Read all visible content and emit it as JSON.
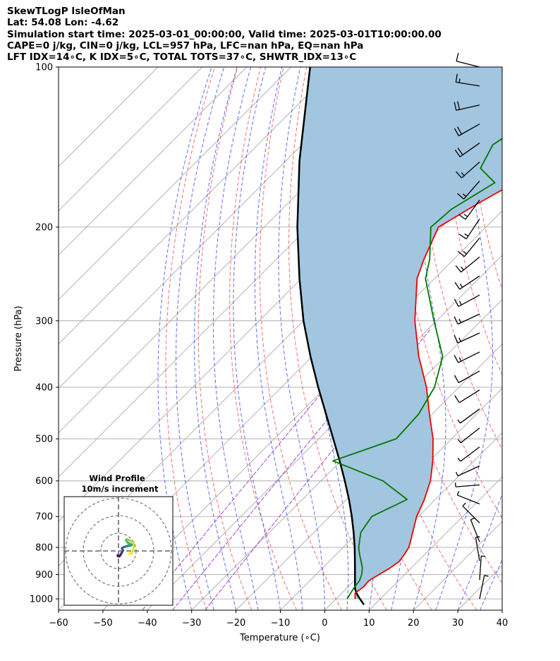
{
  "header": {
    "line1": "SkewTLogP IsleOfMan",
    "line2": "Lat: 54.08   Lon: -4.62",
    "line3": "Simulation start time: 2025-03-01_00:00:00, Valid time: 2025-03-01T10:00:00.00",
    "line4": "CAPE=0 j/kg, CIN=0 j/kg, LCL=957 hPa, LFC=nan hPa, EQ=nan hPa",
    "line5": "LFT IDX=14∘C, K IDX=5∘C, TOTAL TOTS=37∘C, SHWTR_IDX=13∘C"
  },
  "colors": {
    "temperature": "#ee0000",
    "dewpoint": "#007700",
    "parcel": "#000000",
    "cape_fill": "#a2c6df",
    "dry_adiabat": "#ee5555",
    "moist_adiabat": "#4455ee",
    "mixing_ratio": "#9933cc",
    "isotherm": "#aaaaaa"
  },
  "chart_data": [
    {
      "type": "line",
      "subtype": "skew-t log-p",
      "xlabel": "Temperature (∘C)",
      "ylabel": "Pressure (hPa)",
      "xlim": [
        -60,
        40
      ],
      "ylim": [
        1050,
        100
      ],
      "yscale": "log",
      "xticks": [
        -60,
        -50,
        -40,
        -30,
        -20,
        -10,
        0,
        10,
        20,
        30,
        40
      ],
      "xtick_labels": [
        "−60",
        "−50",
        "−40",
        "−30",
        "−20",
        "−10",
        "0",
        "10",
        "20",
        "30",
        "40"
      ],
      "yticks": [
        100,
        200,
        300,
        400,
        500,
        600,
        700,
        800,
        900,
        1000
      ],
      "ytick_labels": [
        "100",
        "200",
        "300",
        "400",
        "500",
        "600",
        "700",
        "800",
        "900",
        "1000"
      ],
      "grid": true,
      "series": [
        {
          "key": "temperature",
          "p": [
            1000,
            975,
            950,
            925,
            900,
            875,
            850,
            825,
            800,
            775,
            750,
            700,
            650,
            600,
            550,
            500,
            450,
            400,
            350,
            300,
            250,
            230,
            200,
            180,
            165,
            150,
            140,
            130,
            120,
            110,
            100
          ],
          "t": [
            4.3,
            3.0,
            3.5,
            3.3,
            4.2,
            5.2,
            5.8,
            5.4,
            4.8,
            3.6,
            2.3,
            -0.4,
            -2.5,
            -5.3,
            -9.3,
            -14.2,
            -20.5,
            -27.3,
            -36.0,
            -44.9,
            -53.9,
            -56.7,
            -60.7,
            -57.0,
            -53.5,
            -53.0,
            -54.5,
            -55.5,
            -56.0,
            -56.4,
            -56.7
          ]
        },
        {
          "key": "dewpoint",
          "p": [
            1000,
            975,
            950,
            925,
            900,
            875,
            850,
            825,
            800,
            750,
            700,
            650,
            600,
            550,
            500,
            450,
            400,
            350,
            300,
            250,
            230,
            200,
            185,
            165,
            155,
            140,
            130,
            120,
            110,
            100
          ],
          "t": [
            2.5,
            2.0,
            1.5,
            1.2,
            0.3,
            -1.0,
            -2.8,
            -4.7,
            -6.5,
            -9.4,
            -10.5,
            -6.4,
            -16.0,
            -31.8,
            -22.5,
            -23.0,
            -25.5,
            -30.6,
            -40.6,
            -52.0,
            -55.4,
            -62.4,
            -61.8,
            -58.0,
            -64.5,
            -67.0,
            -65.0,
            -63.5,
            -62.5,
            -62.0
          ]
        },
        {
          "key": "parcel",
          "p": [
            1025,
            1000,
            975,
            957,
            900,
            850,
            800,
            750,
            700,
            650,
            600,
            550,
            500,
            450,
            400,
            350,
            300,
            250,
            200,
            150,
            100
          ],
          "t": [
            7.6,
            5.4,
            3.3,
            2.0,
            -1.2,
            -4.2,
            -7.4,
            -11.0,
            -15.0,
            -19.5,
            -24.6,
            -30.3,
            -36.7,
            -43.8,
            -51.7,
            -60.4,
            -70.0,
            -80.4,
            -92.5,
            -107.0,
            -125.7
          ]
        }
      ]
    },
    {
      "type": "line",
      "subtype": "hodograph",
      "title": "Wind Profile",
      "subtitle": "10m/s increment",
      "u": [
        -0.5,
        -0.2,
        0.5,
        1.0,
        1.5,
        2.0,
        2.5,
        2.2,
        2.0,
        2.3,
        3.0,
        4.0,
        5.0,
        6.0,
        7.0,
        7.5,
        7.0,
        6.0,
        5.5,
        4.5,
        4.2,
        4.8,
        5.5,
        6.5,
        7.5,
        8.5,
        8.8,
        7.5,
        6.0
      ],
      "v": [
        -2.5,
        -3.0,
        -3.0,
        -2.5,
        -1.5,
        -0.8,
        0.2,
        1.0,
        1.5,
        1.8,
        2.2,
        2.5,
        2.8,
        3.0,
        3.2,
        3.5,
        3.8,
        4.0,
        4.5,
        5.5,
        6.3,
        6.6,
        6.3,
        5.8,
        5.3,
        4.8,
        2.0,
        -1.2,
        -1.5
      ]
    }
  ]
}
